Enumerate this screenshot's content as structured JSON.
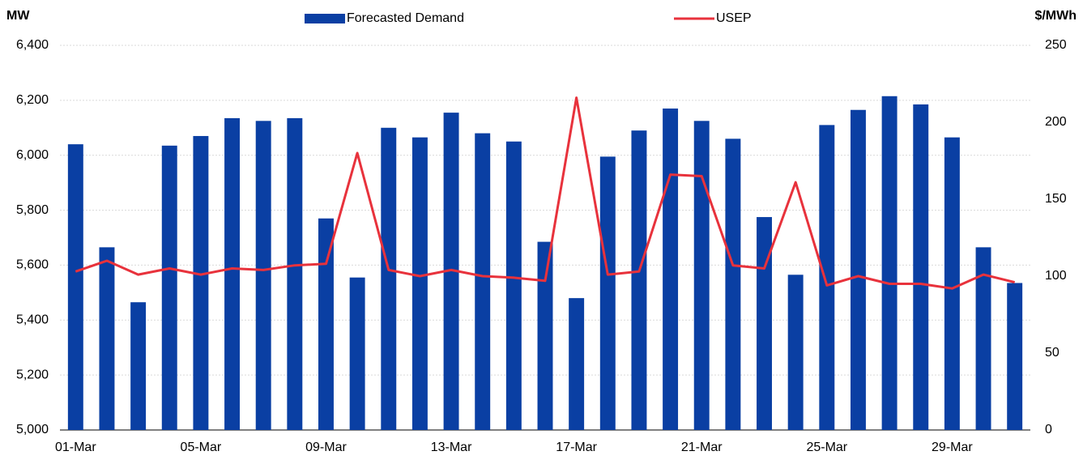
{
  "chart_data": {
    "type": "bar_line",
    "ylabel": "MW",
    "y2label": "$/MWh",
    "categories": [
      "01-Mar",
      null,
      null,
      null,
      "05-Mar",
      null,
      null,
      null,
      "09-Mar",
      null,
      null,
      null,
      "13-Mar",
      null,
      null,
      null,
      "17-Mar",
      null,
      null,
      null,
      "21-Mar",
      null,
      null,
      null,
      "25-Mar",
      null,
      null,
      null,
      "29-Mar",
      null,
      null
    ],
    "series": [
      {
        "name": "Forecasted Demand",
        "type": "bar",
        "color": "#0a3fa3",
        "values": [
          6040,
          5665,
          5465,
          6035,
          6070,
          6135,
          6125,
          6135,
          5770,
          5555,
          6100,
          6065,
          6155,
          6080,
          6050,
          5685,
          5480,
          5995,
          6090,
          6170,
          6125,
          6060,
          5775,
          5565,
          6110,
          6165,
          6215,
          6185,
          6065,
          5665,
          5535
        ]
      },
      {
        "name": "USEP",
        "type": "line",
        "axis": "y2",
        "color": "#e8323c",
        "values": [
          103,
          110,
          101,
          105,
          101,
          105,
          104,
          107,
          108,
          180,
          104,
          100,
          104,
          100,
          99,
          97,
          216,
          101,
          103,
          166,
          165,
          107,
          105,
          161,
          94,
          100,
          95,
          95,
          92,
          101,
          96
        ]
      }
    ],
    "ylim": [
      5000,
      6400
    ],
    "yticks": [
      {
        "value": 5000,
        "label": "5,000"
      },
      {
        "value": 5200,
        "label": "5,200"
      },
      {
        "value": 5400,
        "label": "5,400"
      },
      {
        "value": 5600,
        "label": "5,600"
      },
      {
        "value": 5800,
        "label": "5,800"
      },
      {
        "value": 6000,
        "label": "6,000"
      },
      {
        "value": 6200,
        "label": "6,200"
      },
      {
        "value": 6400,
        "label": "6,400"
      }
    ],
    "y2lim": [
      0,
      250
    ],
    "y2ticks": [
      0,
      50,
      100,
      150,
      200,
      250
    ],
    "grid": true
  }
}
